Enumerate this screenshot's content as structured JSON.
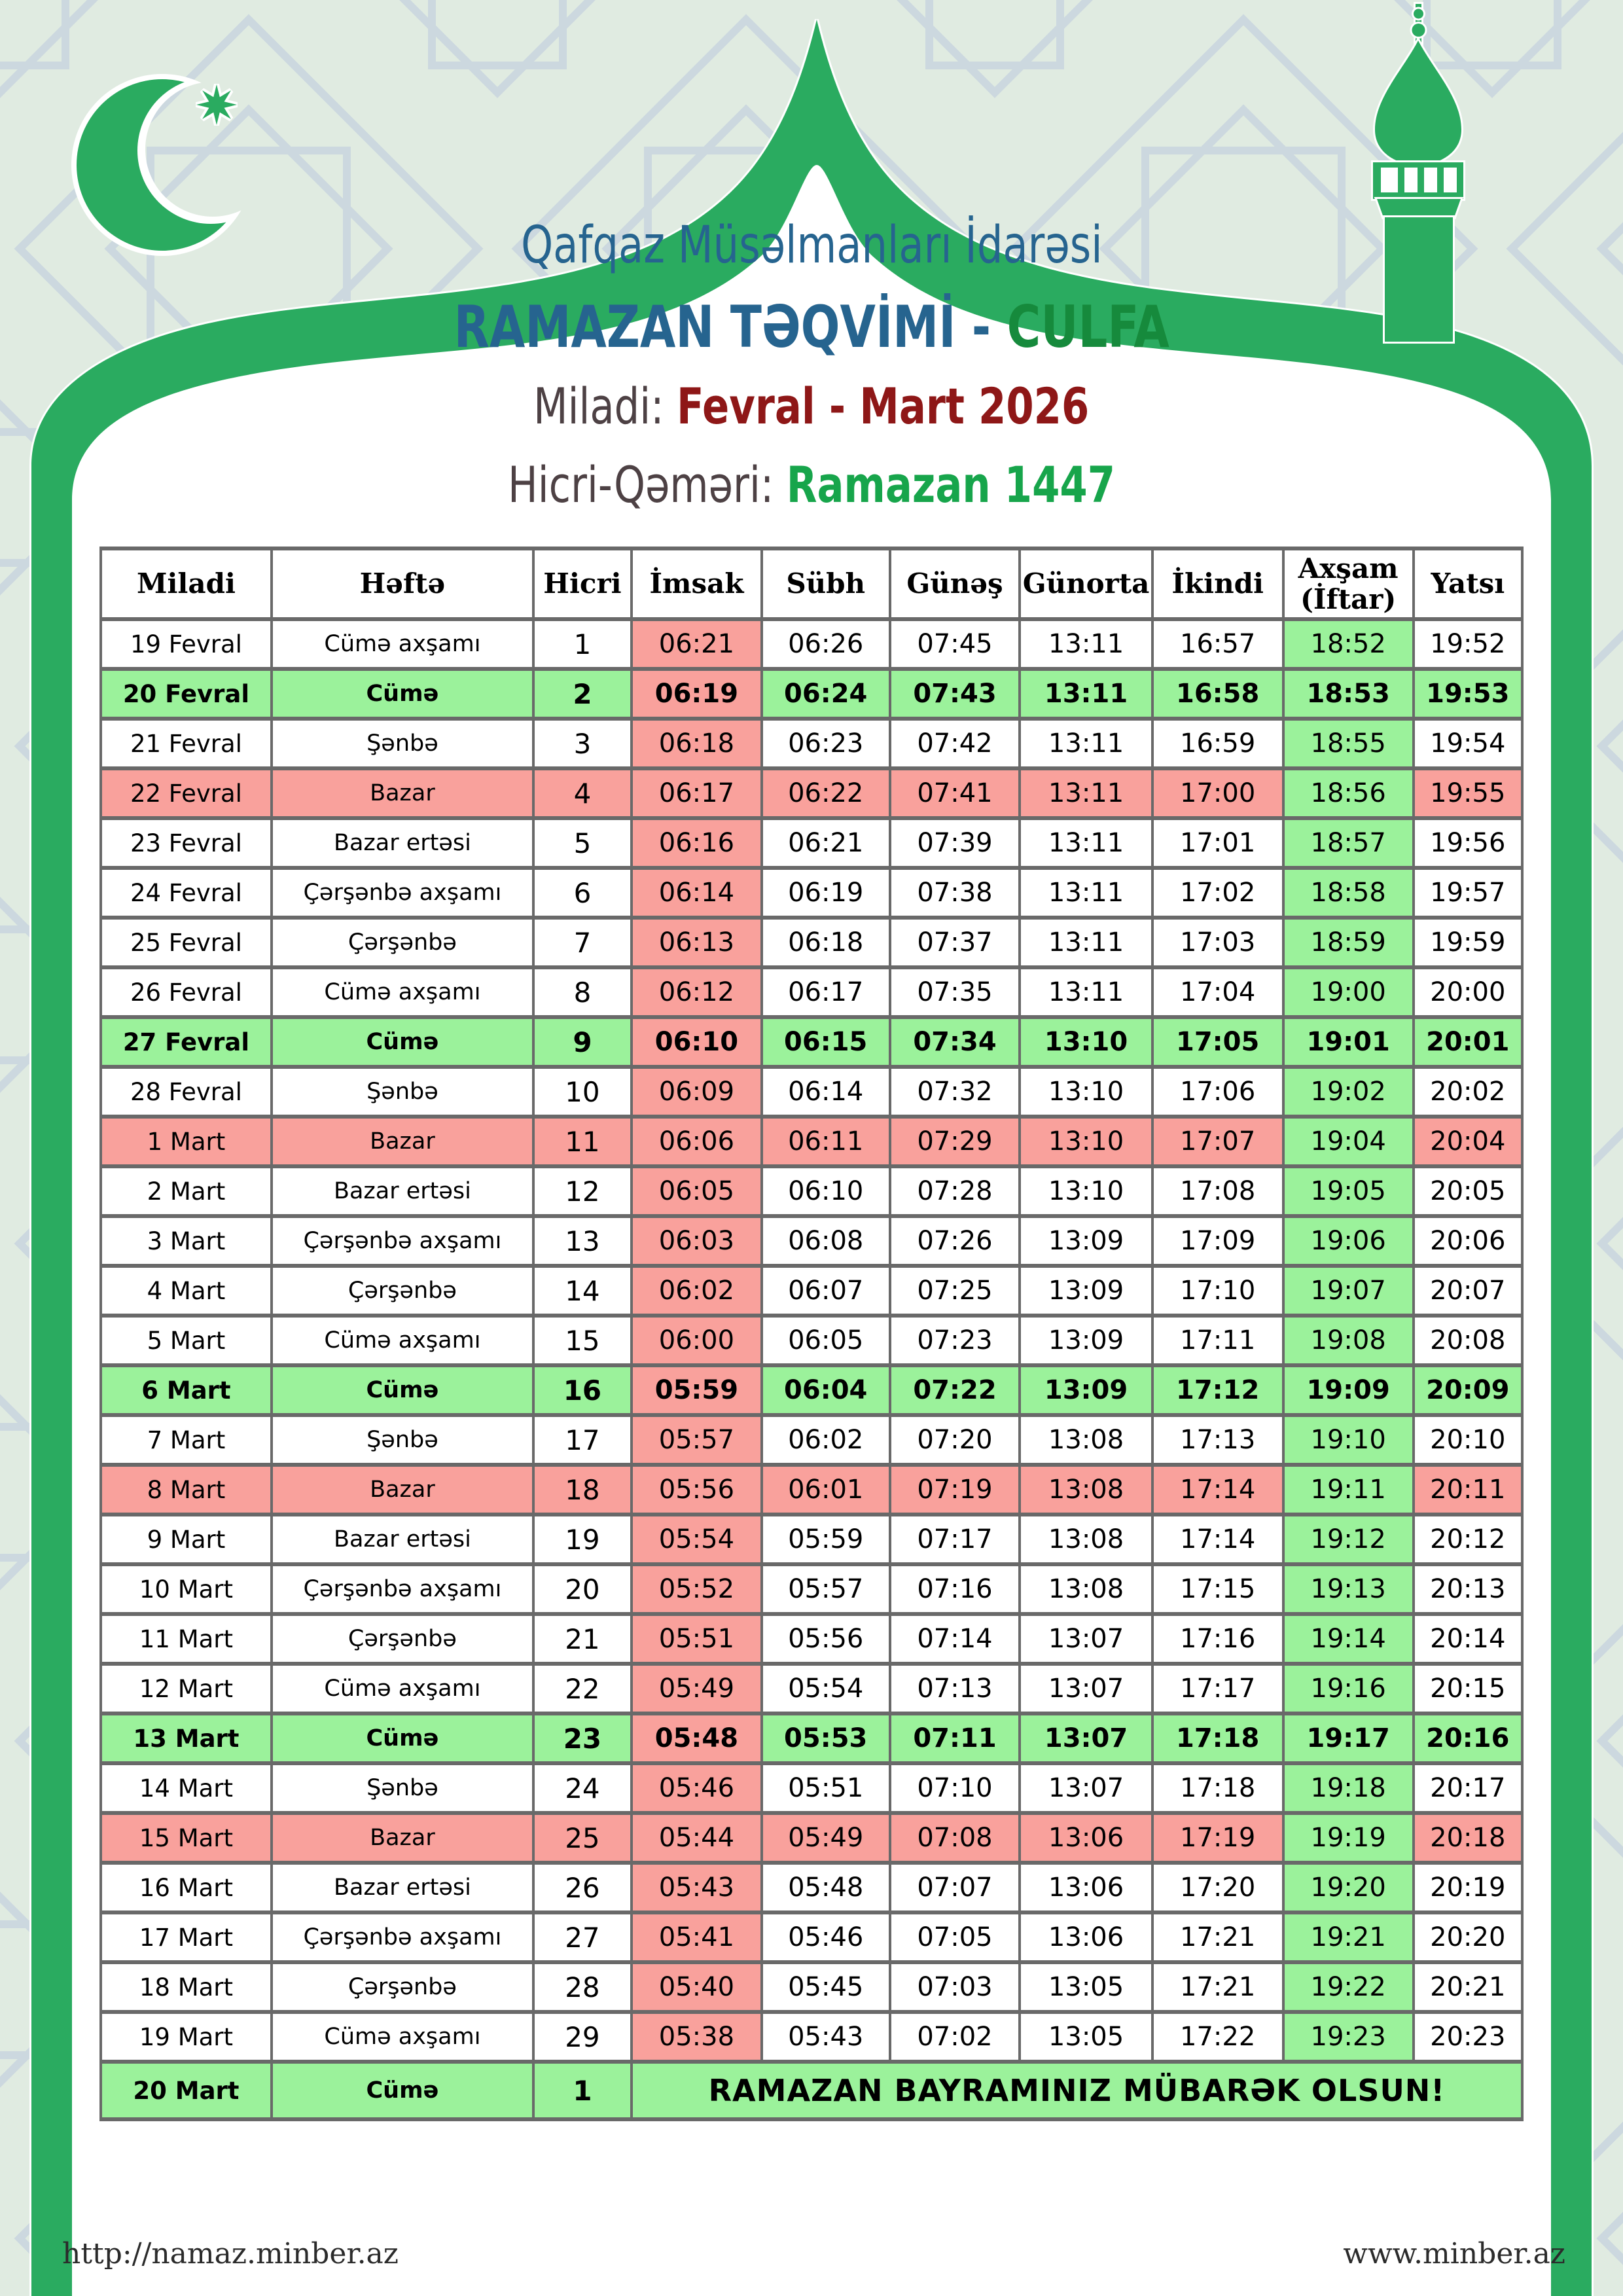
{
  "colors": {
    "frame_green": "#2aab60",
    "light_green": "#9bf29b",
    "pink": "#f9a19c",
    "border_gray": "#696969",
    "blue": "#26648f",
    "culfa_green": "#168a3c",
    "dark_red": "#8e1717",
    "label_dark": "#4d4144",
    "ramazan_green": "#17a54b",
    "background": "#e0ebe1",
    "pattern_line": "#ccd8df"
  },
  "header": {
    "org": "Qafqaz Müsəlmanları İdarəsi",
    "title_main": "RAMAZAN TƏQVİMİ -",
    "title_city": "CULFA",
    "miladi_label": "Miladi:",
    "miladi_value": "Fevral - Mart 2026",
    "hicri_label": "Hicri-Qəməri:",
    "hicri_value": "Ramazan 1447"
  },
  "table": {
    "columns": [
      "Miladi",
      "Həftə",
      "Hicri",
      "İmsak",
      "Sübh",
      "Günəş",
      "Günorta",
      "İkindi",
      "Axşam (İftar)",
      "Yatsı"
    ],
    "bayram_message": "RAMAZAN BAYRAMINIZ MÜBARƏK OLSUN!",
    "rows": [
      {
        "type": "normal",
        "miladi": "19 Fevral",
        "hefte": "Cümə axşamı",
        "hicri": "1",
        "imsak": "06:21",
        "subh": "06:26",
        "gunes": "07:45",
        "gunorta": "13:11",
        "ikindi": "16:57",
        "aksam": "18:52",
        "yatsi": "19:52"
      },
      {
        "type": "friday",
        "miladi": "20 Fevral",
        "hefte": "Cümə",
        "hicri": "2",
        "imsak": "06:19",
        "subh": "06:24",
        "gunes": "07:43",
        "gunorta": "13:11",
        "ikindi": "16:58",
        "aksam": "18:53",
        "yatsi": "19:53"
      },
      {
        "type": "normal",
        "miladi": "21 Fevral",
        "hefte": "Şənbə",
        "hicri": "3",
        "imsak": "06:18",
        "subh": "06:23",
        "gunes": "07:42",
        "gunorta": "13:11",
        "ikindi": "16:59",
        "aksam": "18:55",
        "yatsi": "19:54"
      },
      {
        "type": "sunday",
        "miladi": "22 Fevral",
        "hefte": "Bazar",
        "hicri": "4",
        "imsak": "06:17",
        "subh": "06:22",
        "gunes": "07:41",
        "gunorta": "13:11",
        "ikindi": "17:00",
        "aksam": "18:56",
        "yatsi": "19:55"
      },
      {
        "type": "normal",
        "miladi": "23 Fevral",
        "hefte": "Bazar ertəsi",
        "hicri": "5",
        "imsak": "06:16",
        "subh": "06:21",
        "gunes": "07:39",
        "gunorta": "13:11",
        "ikindi": "17:01",
        "aksam": "18:57",
        "yatsi": "19:56"
      },
      {
        "type": "normal",
        "miladi": "24 Fevral",
        "hefte": "Çərşənbə axşamı",
        "hicri": "6",
        "imsak": "06:14",
        "subh": "06:19",
        "gunes": "07:38",
        "gunorta": "13:11",
        "ikindi": "17:02",
        "aksam": "18:58",
        "yatsi": "19:57"
      },
      {
        "type": "normal",
        "miladi": "25 Fevral",
        "hefte": "Çərşənbə",
        "hicri": "7",
        "imsak": "06:13",
        "subh": "06:18",
        "gunes": "07:37",
        "gunorta": "13:11",
        "ikindi": "17:03",
        "aksam": "18:59",
        "yatsi": "19:59"
      },
      {
        "type": "normal",
        "miladi": "26 Fevral",
        "hefte": "Cümə axşamı",
        "hicri": "8",
        "imsak": "06:12",
        "subh": "06:17",
        "gunes": "07:35",
        "gunorta": "13:11",
        "ikindi": "17:04",
        "aksam": "19:00",
        "yatsi": "20:00"
      },
      {
        "type": "friday",
        "miladi": "27 Fevral",
        "hefte": "Cümə",
        "hicri": "9",
        "imsak": "06:10",
        "subh": "06:15",
        "gunes": "07:34",
        "gunorta": "13:10",
        "ikindi": "17:05",
        "aksam": "19:01",
        "yatsi": "20:01"
      },
      {
        "type": "normal",
        "miladi": "28 Fevral",
        "hefte": "Şənbə",
        "hicri": "10",
        "imsak": "06:09",
        "subh": "06:14",
        "gunes": "07:32",
        "gunorta": "13:10",
        "ikindi": "17:06",
        "aksam": "19:02",
        "yatsi": "20:02"
      },
      {
        "type": "sunday",
        "miladi": "1 Mart",
        "hefte": "Bazar",
        "hicri": "11",
        "imsak": "06:06",
        "subh": "06:11",
        "gunes": "07:29",
        "gunorta": "13:10",
        "ikindi": "17:07",
        "aksam": "19:04",
        "yatsi": "20:04"
      },
      {
        "type": "normal",
        "miladi": "2 Mart",
        "hefte": "Bazar ertəsi",
        "hicri": "12",
        "imsak": "06:05",
        "subh": "06:10",
        "gunes": "07:28",
        "gunorta": "13:10",
        "ikindi": "17:08",
        "aksam": "19:05",
        "yatsi": "20:05"
      },
      {
        "type": "normal",
        "miladi": "3 Mart",
        "hefte": "Çərşənbə axşamı",
        "hicri": "13",
        "imsak": "06:03",
        "subh": "06:08",
        "gunes": "07:26",
        "gunorta": "13:09",
        "ikindi": "17:09",
        "aksam": "19:06",
        "yatsi": "20:06"
      },
      {
        "type": "normal",
        "miladi": "4 Mart",
        "hefte": "Çərşənbə",
        "hicri": "14",
        "imsak": "06:02",
        "subh": "06:07",
        "gunes": "07:25",
        "gunorta": "13:09",
        "ikindi": "17:10",
        "aksam": "19:07",
        "yatsi": "20:07"
      },
      {
        "type": "normal",
        "miladi": "5 Mart",
        "hefte": "Cümə axşamı",
        "hicri": "15",
        "imsak": "06:00",
        "subh": "06:05",
        "gunes": "07:23",
        "gunorta": "13:09",
        "ikindi": "17:11",
        "aksam": "19:08",
        "yatsi": "20:08"
      },
      {
        "type": "friday",
        "miladi": "6 Mart",
        "hefte": "Cümə",
        "hicri": "16",
        "imsak": "05:59",
        "subh": "06:04",
        "gunes": "07:22",
        "gunorta": "13:09",
        "ikindi": "17:12",
        "aksam": "19:09",
        "yatsi": "20:09"
      },
      {
        "type": "normal",
        "miladi": "7 Mart",
        "hefte": "Şənbə",
        "hicri": "17",
        "imsak": "05:57",
        "subh": "06:02",
        "gunes": "07:20",
        "gunorta": "13:08",
        "ikindi": "17:13",
        "aksam": "19:10",
        "yatsi": "20:10"
      },
      {
        "type": "sunday",
        "miladi": "8 Mart",
        "hefte": "Bazar",
        "hicri": "18",
        "imsak": "05:56",
        "subh": "06:01",
        "gunes": "07:19",
        "gunorta": "13:08",
        "ikindi": "17:14",
        "aksam": "19:11",
        "yatsi": "20:11"
      },
      {
        "type": "normal",
        "miladi": "9 Mart",
        "hefte": "Bazar ertəsi",
        "hicri": "19",
        "imsak": "05:54",
        "subh": "05:59",
        "gunes": "07:17",
        "gunorta": "13:08",
        "ikindi": "17:14",
        "aksam": "19:12",
        "yatsi": "20:12"
      },
      {
        "type": "normal",
        "miladi": "10 Mart",
        "hefte": "Çərşənbə axşamı",
        "hicri": "20",
        "imsak": "05:52",
        "subh": "05:57",
        "gunes": "07:16",
        "gunorta": "13:08",
        "ikindi": "17:15",
        "aksam": "19:13",
        "yatsi": "20:13"
      },
      {
        "type": "normal",
        "miladi": "11 Mart",
        "hefte": "Çərşənbə",
        "hicri": "21",
        "imsak": "05:51",
        "subh": "05:56",
        "gunes": "07:14",
        "gunorta": "13:07",
        "ikindi": "17:16",
        "aksam": "19:14",
        "yatsi": "20:14"
      },
      {
        "type": "normal",
        "miladi": "12 Mart",
        "hefte": "Cümə axşamı",
        "hicri": "22",
        "imsak": "05:49",
        "subh": "05:54",
        "gunes": "07:13",
        "gunorta": "13:07",
        "ikindi": "17:17",
        "aksam": "19:16",
        "yatsi": "20:15"
      },
      {
        "type": "friday",
        "miladi": "13 Mart",
        "hefte": "Cümə",
        "hicri": "23",
        "imsak": "05:48",
        "subh": "05:53",
        "gunes": "07:11",
        "gunorta": "13:07",
        "ikindi": "17:18",
        "aksam": "19:17",
        "yatsi": "20:16"
      },
      {
        "type": "normal",
        "miladi": "14 Mart",
        "hefte": "Şənbə",
        "hicri": "24",
        "imsak": "05:46",
        "subh": "05:51",
        "gunes": "07:10",
        "gunorta": "13:07",
        "ikindi": "17:18",
        "aksam": "19:18",
        "yatsi": "20:17"
      },
      {
        "type": "sunday",
        "miladi": "15 Mart",
        "hefte": "Bazar",
        "hicri": "25",
        "imsak": "05:44",
        "subh": "05:49",
        "gunes": "07:08",
        "gunorta": "13:06",
        "ikindi": "17:19",
        "aksam": "19:19",
        "yatsi": "20:18"
      },
      {
        "type": "normal",
        "miladi": "16 Mart",
        "hefte": "Bazar ertəsi",
        "hicri": "26",
        "imsak": "05:43",
        "subh": "05:48",
        "gunes": "07:07",
        "gunorta": "13:06",
        "ikindi": "17:20",
        "aksam": "19:20",
        "yatsi": "20:19"
      },
      {
        "type": "normal",
        "miladi": "17 Mart",
        "hefte": "Çərşənbə axşamı",
        "hicri": "27",
        "imsak": "05:41",
        "subh": "05:46",
        "gunes": "07:05",
        "gunorta": "13:06",
        "ikindi": "17:21",
        "aksam": "19:21",
        "yatsi": "20:20"
      },
      {
        "type": "normal",
        "miladi": "18 Mart",
        "hefte": "Çərşənbə",
        "hicri": "28",
        "imsak": "05:40",
        "subh": "05:45",
        "gunes": "07:03",
        "gunorta": "13:05",
        "ikindi": "17:21",
        "aksam": "19:22",
        "yatsi": "20:21"
      },
      {
        "type": "normal",
        "miladi": "19 Mart",
        "hefte": "Cümə axşamı",
        "hicri": "29",
        "imsak": "05:38",
        "subh": "05:43",
        "gunes": "07:02",
        "gunorta": "13:05",
        "ikindi": "17:22",
        "aksam": "19:23",
        "yatsi": "20:23"
      },
      {
        "type": "bayram",
        "miladi": "20 Mart",
        "hefte": "Cümə",
        "hicri": "1",
        "imsak": "",
        "subh": "",
        "gunes": "",
        "gunorta": "",
        "ikindi": "",
        "aksam": "",
        "yatsi": ""
      }
    ]
  },
  "footer": {
    "left_url": "http://namaz.minber.az",
    "right_url": "www.minber.az"
  }
}
